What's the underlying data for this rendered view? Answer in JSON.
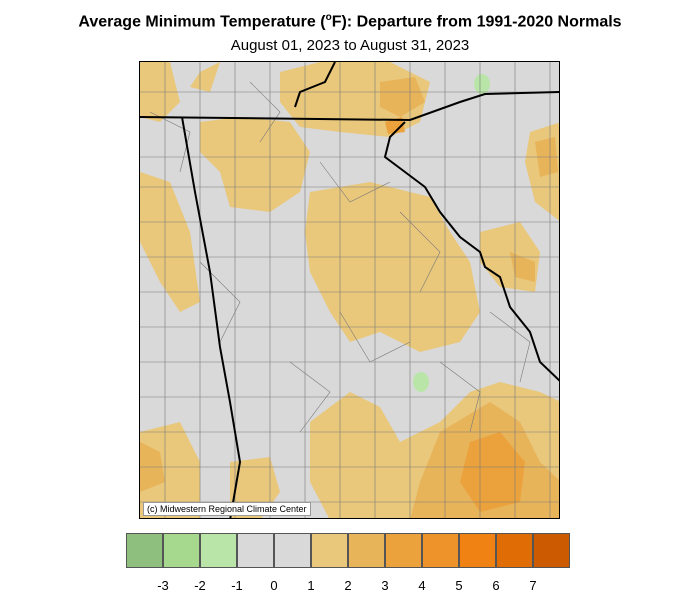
{
  "title_main": "Average Minimum Temperature (",
  "title_sup": "o",
  "title_rest": "F): Departure from 1991-2020 Normals",
  "subtitle": "August 01, 2023 to August 31, 2023",
  "credit": "(c) Midwestern Regional Climate Center",
  "legend": {
    "colors": [
      "#8fbf7f",
      "#a6d98e",
      "#b9e6a8",
      "#d9d9d9",
      "#d9d9d9",
      "#e9c77b",
      "#e8b45a",
      "#eba23d",
      "#ee922a",
      "#ef8213",
      "#e06c05",
      "#cc5a00"
    ],
    "ticks": [
      "-3",
      "-2",
      "-1",
      "0",
      "1",
      "2",
      "3",
      "4",
      "5",
      "6",
      "7"
    ]
  }
}
